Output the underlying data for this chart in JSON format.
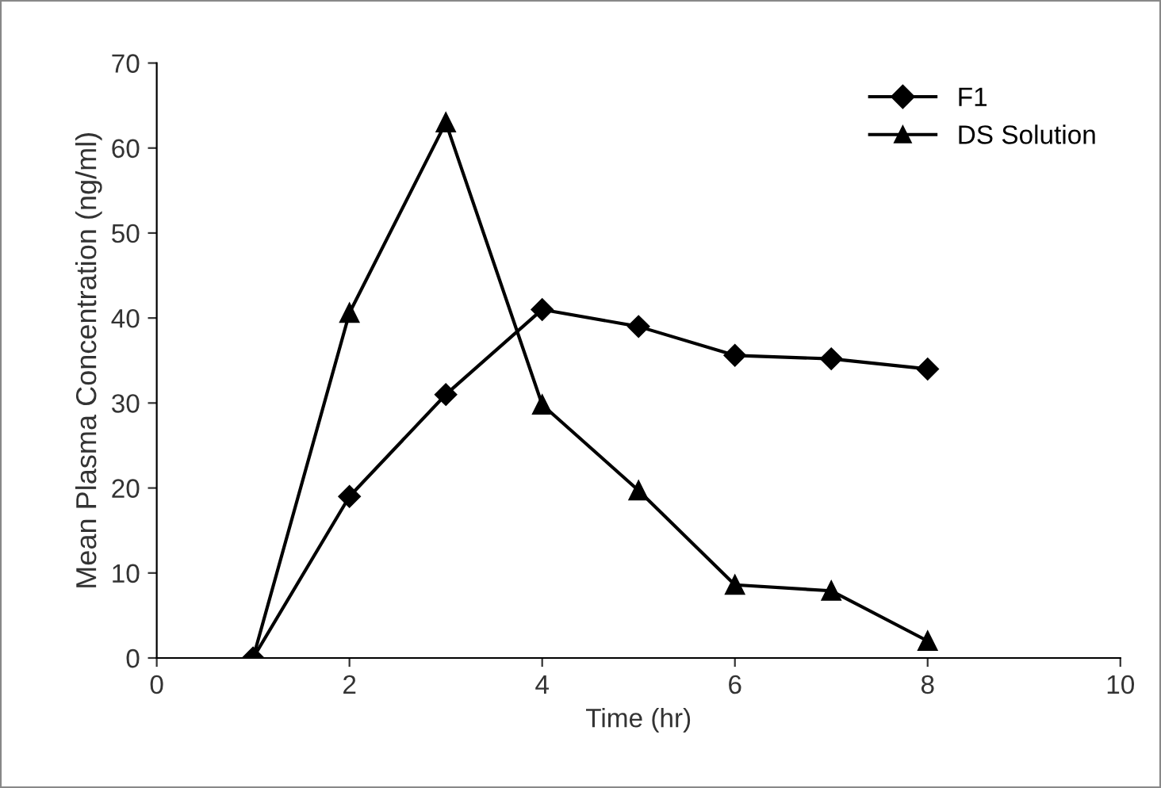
{
  "chart_data": {
    "type": "line",
    "xlabel": "Time (hr)",
    "ylabel": "Mean Plasma Concentration (ng/ml)",
    "xlim": [
      0,
      10
    ],
    "xticks": [
      0,
      2,
      4,
      6,
      8,
      10
    ],
    "ylim": [
      0,
      70
    ],
    "yticks": [
      0,
      10,
      20,
      30,
      40,
      50,
      60,
      70
    ],
    "grid": false,
    "legend": "top right",
    "line_style": "solid",
    "series": [
      {
        "name": "F1",
        "color": "#000000",
        "marker": "diamond",
        "x": [
          1,
          2,
          3,
          4,
          5,
          6,
          7,
          8
        ],
        "values": [
          0,
          19,
          31,
          41,
          39,
          35.6,
          35.2,
          34
        ]
      },
      {
        "name": "DS Solution",
        "color": "#000000",
        "marker": "triangle",
        "x": [
          1,
          2,
          3,
          4,
          5,
          6,
          7,
          8
        ],
        "values": [
          0,
          40.6,
          63,
          29.8,
          19.7,
          8.6,
          7.9,
          2
        ]
      }
    ]
  }
}
